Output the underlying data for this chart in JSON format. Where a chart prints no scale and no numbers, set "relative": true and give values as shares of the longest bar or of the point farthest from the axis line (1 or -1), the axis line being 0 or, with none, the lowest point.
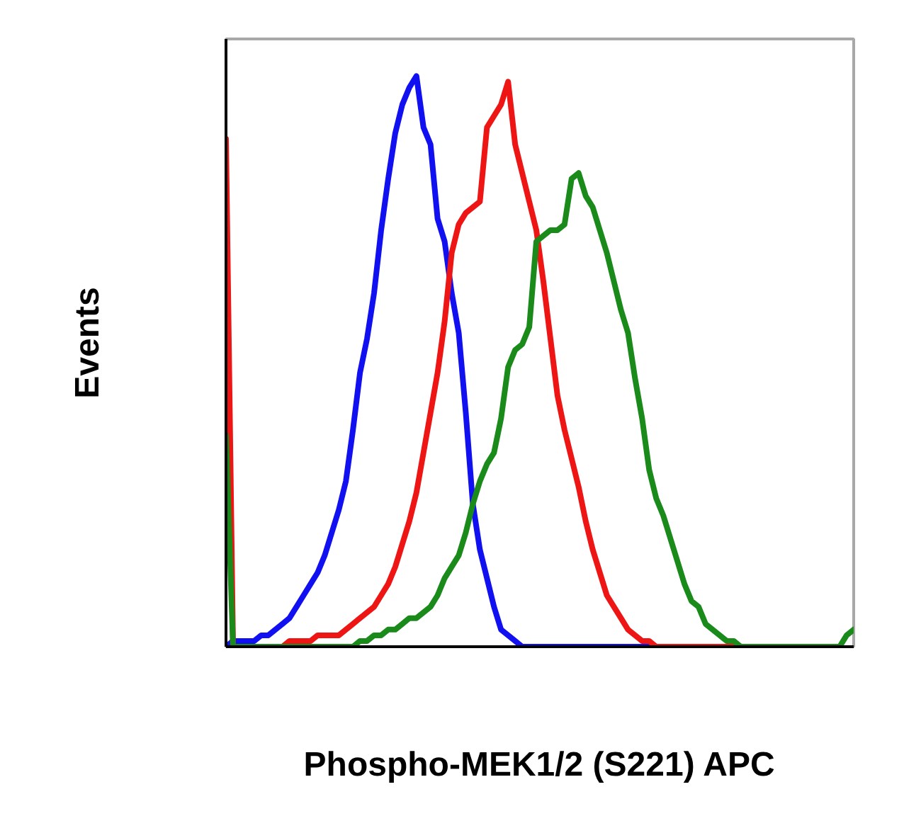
{
  "chart_data": {
    "type": "line",
    "xlabel": "Phospho-MEK1/2 (S221) APC",
    "ylabel": "Events",
    "relative": true,
    "line_style": "solid",
    "categories": [
      null,
      null,
      null,
      null,
      null,
      null,
      null,
      null,
      null,
      null,
      null,
      null,
      null,
      null,
      null,
      null,
      null,
      null,
      null,
      null,
      null,
      null,
      null,
      null,
      null,
      null,
      null,
      null,
      null,
      null,
      null,
      null,
      null,
      null,
      null,
      null,
      null,
      null,
      null,
      null,
      null,
      null,
      null,
      null,
      null,
      null,
      null,
      null,
      null,
      null,
      null,
      null,
      null,
      null,
      null,
      null,
      null,
      null,
      null,
      null,
      null,
      null,
      null,
      null,
      null,
      null,
      null,
      null,
      null,
      null,
      null,
      null,
      null,
      null,
      null,
      null,
      null,
      null,
      null,
      null,
      null,
      null,
      null,
      null,
      null,
      null,
      null,
      null,
      null,
      null
    ],
    "series": [
      {
        "color": "#1010f0",
        "values": [
          0,
          0.01,
          0.01,
          0.01,
          0.01,
          0.02,
          0.02,
          0.03,
          0.04,
          0.05,
          0.07,
          0.09,
          0.11,
          0.13,
          0.16,
          0.2,
          0.24,
          0.29,
          0.38,
          0.48,
          0.54,
          0.62,
          0.73,
          0.82,
          0.9,
          0.95,
          0.98,
          1,
          0.91,
          0.88,
          0.75,
          0.71,
          0.62,
          0.55,
          0.41,
          0.25,
          0.17,
          0.12,
          0.07,
          0.03,
          0.02,
          0.01,
          0,
          0,
          0,
          0,
          0,
          0,
          0,
          0,
          0,
          0,
          0,
          0,
          0,
          0,
          0,
          0,
          0,
          0,
          0,
          0,
          0,
          null,
          null,
          null,
          null,
          null,
          null,
          null,
          null,
          null,
          null,
          null,
          null,
          null,
          null,
          null,
          null,
          null,
          null,
          null,
          null,
          null,
          null,
          null,
          null,
          null,
          null,
          null
        ]
      },
      {
        "color": "#ee1515",
        "values": [
          0.89,
          0,
          0,
          0,
          0,
          0,
          0,
          0,
          0,
          0.01,
          0.01,
          0.01,
          0.01,
          0.02,
          0.02,
          0.02,
          0.02,
          0.03,
          0.04,
          0.05,
          0.06,
          0.07,
          0.09,
          0.11,
          0.14,
          0.18,
          0.22,
          0.27,
          0.34,
          0.41,
          0.48,
          0.57,
          0.69,
          0.74,
          0.76,
          0.77,
          0.78,
          0.91,
          0.93,
          0.95,
          0.99,
          0.88,
          0.83,
          0.78,
          0.73,
          0.64,
          0.54,
          0.44,
          0.38,
          0.33,
          0.28,
          0.22,
          0.17,
          0.13,
          0.09,
          0.07,
          0.05,
          0.03,
          0.02,
          0.01,
          0.01,
          0,
          0,
          0,
          0,
          0,
          0,
          0,
          0,
          0,
          0,
          0,
          0,
          0,
          0,
          null,
          null,
          null,
          null,
          null,
          null,
          null,
          null,
          null,
          null,
          null,
          null,
          null,
          null,
          null
        ]
      },
      {
        "color": "#1a8a1a",
        "values": [
          0.37,
          0,
          0,
          0,
          0,
          0,
          0,
          0,
          0,
          0,
          0,
          0,
          0,
          0,
          0,
          0,
          0,
          0,
          0,
          0.01,
          0.01,
          0.02,
          0.02,
          0.03,
          0.03,
          0.04,
          0.05,
          0.05,
          0.06,
          0.07,
          0.09,
          0.12,
          0.14,
          0.16,
          0.2,
          0.25,
          0.29,
          0.32,
          0.34,
          0.4,
          0.49,
          0.52,
          0.53,
          0.56,
          0.71,
          0.72,
          0.73,
          0.73,
          0.74,
          0.82,
          0.83,
          0.79,
          0.77,
          0.73,
          0.69,
          0.64,
          0.59,
          0.55,
          0.47,
          0.4,
          0.31,
          0.26,
          0.23,
          0.19,
          0.15,
          0.11,
          0.08,
          0.07,
          0.04,
          0.03,
          0.02,
          0.01,
          0.01,
          0,
          0,
          0,
          0,
          0,
          0,
          0,
          0,
          0,
          0,
          0,
          0,
          0,
          0,
          0,
          0.02,
          0.03
        ]
      }
    ]
  }
}
